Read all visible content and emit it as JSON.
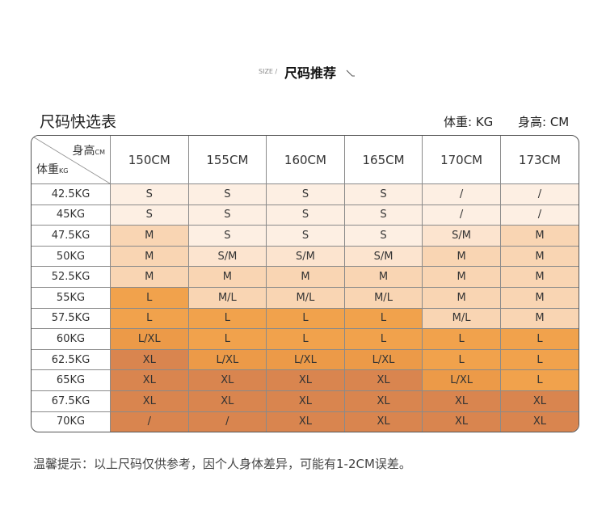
{
  "header": {
    "size_label": "SIZE /",
    "title": "尺码推荐"
  },
  "table": {
    "title": "尺码快选表",
    "units": [
      "体重: KG",
      "身高: CM"
    ],
    "corner": {
      "height": "身高",
      "height_unit": "CM",
      "weight": "体重",
      "weight_unit": "KG"
    },
    "columns": [
      "150CM",
      "155CM",
      "160CM",
      "165CM",
      "170CM",
      "173CM"
    ],
    "rows": [
      {
        "weight": "42.5KG",
        "sizes": [
          "S",
          "S",
          "S",
          "S",
          "/",
          "/"
        ],
        "colors": [
          "#fdefe3",
          "#fdefe3",
          "#fdefe3",
          "#fdefe3",
          "#fdefe3",
          "#fdefe3"
        ]
      },
      {
        "weight": "45KG",
        "sizes": [
          "S",
          "S",
          "S",
          "S",
          "/",
          "/"
        ],
        "colors": [
          "#fdefe3",
          "#fdefe3",
          "#fdefe3",
          "#fdefe3",
          "#fdefe3",
          "#fdefe3"
        ]
      },
      {
        "weight": "47.5KG",
        "sizes": [
          "M",
          "S",
          "S",
          "S",
          "S/M",
          "M"
        ],
        "colors": [
          "#f9d5b3",
          "#fdefe3",
          "#fdefe3",
          "#fdefe3",
          "#fce4cf",
          "#f9d5b3"
        ]
      },
      {
        "weight": "50KG",
        "sizes": [
          "M",
          "S/M",
          "S/M",
          "S/M",
          "M",
          "M"
        ],
        "colors": [
          "#f9d5b3",
          "#fce4cf",
          "#fce4cf",
          "#fce4cf",
          "#f9d5b3",
          "#f9d5b3"
        ]
      },
      {
        "weight": "52.5KG",
        "sizes": [
          "M",
          "M",
          "M",
          "M",
          "M",
          "M"
        ],
        "colors": [
          "#f9d5b3",
          "#f9d5b3",
          "#f9d5b3",
          "#f9d5b3",
          "#f9d5b3",
          "#f9d5b3"
        ]
      },
      {
        "weight": "55KG",
        "sizes": [
          "L",
          "M/L",
          "M/L",
          "M/L",
          "M",
          "M"
        ],
        "colors": [
          "#f1a24c",
          "#f9d5b3",
          "#f9d5b3",
          "#f9d5b3",
          "#f9d5b3",
          "#f9d5b3"
        ]
      },
      {
        "weight": "57.5KG",
        "sizes": [
          "L",
          "L",
          "L",
          "L",
          "M/L",
          "M"
        ],
        "colors": [
          "#f1a24c",
          "#f1a24c",
          "#f1a24c",
          "#f1a24c",
          "#f9d5b3",
          "#f9d5b3"
        ]
      },
      {
        "weight": "60KG",
        "sizes": [
          "L/XL",
          "L",
          "L",
          "L",
          "L",
          "L"
        ],
        "colors": [
          "#ec9a48",
          "#f1a24c",
          "#f1a24c",
          "#f1a24c",
          "#f1a24c",
          "#f1a24c"
        ]
      },
      {
        "weight": "62.5KG",
        "sizes": [
          "XL",
          "L/XL",
          "L/XL",
          "L/XL",
          "L",
          "L"
        ],
        "colors": [
          "#d9854f",
          "#ec9a48",
          "#ec9a48",
          "#ec9a48",
          "#f1a24c",
          "#f1a24c"
        ]
      },
      {
        "weight": "65KG",
        "sizes": [
          "XL",
          "XL",
          "XL",
          "XL",
          "L/XL",
          "L"
        ],
        "colors": [
          "#d9854f",
          "#d9854f",
          "#d9854f",
          "#d9854f",
          "#ec9a48",
          "#f1a24c"
        ]
      },
      {
        "weight": "67.5KG",
        "sizes": [
          "XL",
          "XL",
          "XL",
          "XL",
          "XL",
          "XL"
        ],
        "colors": [
          "#d9854f",
          "#d9854f",
          "#d9854f",
          "#d9854f",
          "#d9854f",
          "#d9854f"
        ]
      },
      {
        "weight": "70KG",
        "sizes": [
          "/",
          "/",
          "XL",
          "XL",
          "XL",
          "XL"
        ],
        "colors": [
          "#d9854f",
          "#d9854f",
          "#d9854f",
          "#d9854f",
          "#d9854f",
          "#d9854f"
        ]
      }
    ]
  },
  "note": "温馨提示：以上尺码仅供参考，因个人身体差异，可能有1-2CM误差。"
}
